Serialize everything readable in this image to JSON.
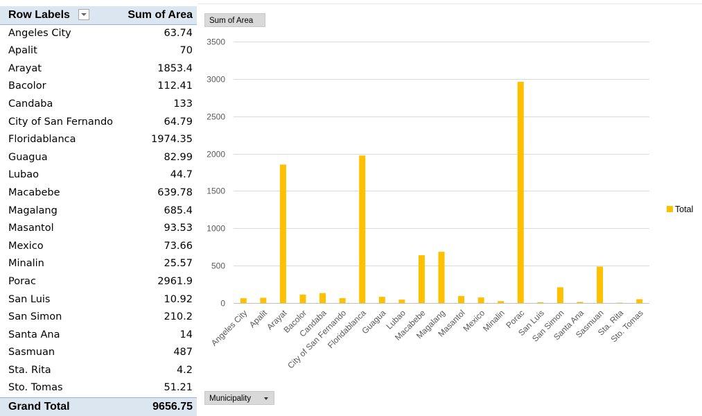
{
  "pivot": {
    "header_rows": "Row Labels",
    "header_values": "Sum of Area",
    "rows": [
      {
        "label": "Angeles City",
        "value": "63.74"
      },
      {
        "label": "Apalit",
        "value": "70"
      },
      {
        "label": "Arayat",
        "value": "1853.4"
      },
      {
        "label": "Bacolor",
        "value": "112.41"
      },
      {
        "label": "Candaba",
        "value": "133"
      },
      {
        "label": "City of San Fernando",
        "value": "64.79"
      },
      {
        "label": "Floridablanca",
        "value": "1974.35"
      },
      {
        "label": "Guagua",
        "value": "82.99"
      },
      {
        "label": "Lubao",
        "value": "44.7"
      },
      {
        "label": "Macabebe",
        "value": "639.78"
      },
      {
        "label": "Magalang",
        "value": "685.4"
      },
      {
        "label": "Masantol",
        "value": "93.53"
      },
      {
        "label": "Mexico",
        "value": "73.66"
      },
      {
        "label": "Minalin",
        "value": "25.57"
      },
      {
        "label": "Porac",
        "value": "2961.9"
      },
      {
        "label": "San Luis",
        "value": "10.92"
      },
      {
        "label": "San Simon",
        "value": "210.2"
      },
      {
        "label": "Santa Ana",
        "value": "14"
      },
      {
        "label": "Sasmuan",
        "value": "487"
      },
      {
        "label": "Sta. Rita",
        "value": "4.2"
      },
      {
        "label": "Sto. Tomas",
        "value": "51.21"
      }
    ],
    "total_label": "Grand Total",
    "total_value": "9656.75"
  },
  "chart_buttons": {
    "value_field": "Sum of Area",
    "axis_field": "Municipality"
  },
  "chart_data": {
    "type": "bar",
    "title": "",
    "xlabel": "",
    "ylabel": "",
    "ylim": [
      0,
      3500
    ],
    "yticks": [
      0,
      500,
      1000,
      1500,
      2000,
      2500,
      3000,
      3500
    ],
    "grid": true,
    "legend": "right",
    "categories": [
      "Angeles City",
      "Apalit",
      "Arayat",
      "Bacolor",
      "Candaba",
      "City of San Fernando",
      "Floridablanca",
      "Guagua",
      "Lubao",
      "Macabebe",
      "Magalang",
      "Masantol",
      "Mexico",
      "Minalin",
      "Porac",
      "San Luis",
      "San Simon",
      "Santa Ana",
      "Sasmuan",
      "Sta. Rita",
      "Sto. Tomas"
    ],
    "series": [
      {
        "name": "Total",
        "color": "#ffc000",
        "values": [
          63.74,
          70,
          1853.4,
          112.41,
          133,
          64.79,
          1974.35,
          82.99,
          44.7,
          639.78,
          685.4,
          93.53,
          73.66,
          25.57,
          2961.9,
          10.92,
          210.2,
          14,
          487,
          4.2,
          51.21
        ]
      }
    ]
  }
}
